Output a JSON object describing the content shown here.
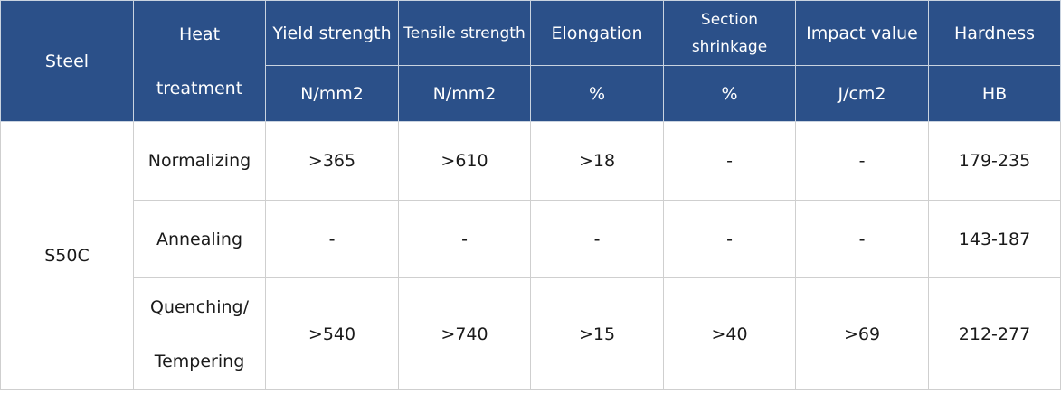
{
  "header": {
    "steel": "Steel",
    "heat_line1": "Heat",
    "heat_line2": "treatment",
    "yield": "Yield strength",
    "tensile": "Tensile strength",
    "elongation": "Elongation",
    "section_line1": "Section",
    "section_line2": "shrinkage",
    "impact": "Impact value",
    "hardness": "Hardness",
    "units": {
      "yield": "N/mm2",
      "tensile": "N/mm2",
      "elongation": "%",
      "section": "%",
      "impact": "J/cm2",
      "hardness": "HB"
    }
  },
  "steel": "S50C",
  "rows": [
    {
      "treatment": "Normalizing",
      "yield": ">365",
      "tensile": ">610",
      "elongation": ">18",
      "section": "-",
      "impact": "-",
      "hardness": "179-235"
    },
    {
      "treatment": "Annealing",
      "yield": "-",
      "tensile": "-",
      "elongation": "-",
      "section": "-",
      "impact": "-",
      "hardness": "143-187"
    },
    {
      "treatment_line1": "Quenching/",
      "treatment_line2": "Tempering",
      "yield": ">540",
      "tensile": ">740",
      "elongation": ">15",
      "section": ">40",
      "impact": ">69",
      "hardness": "212-277"
    }
  ]
}
